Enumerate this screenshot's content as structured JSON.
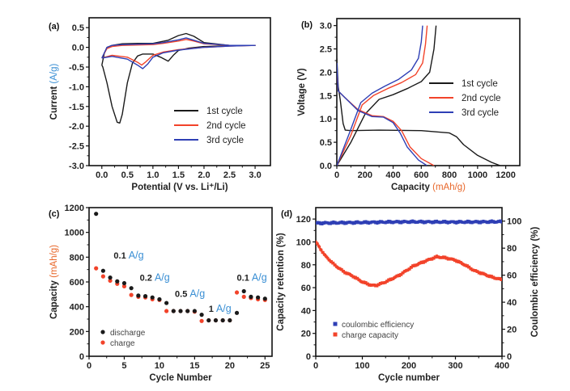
{
  "colors": {
    "black": "#1a1a1a",
    "red": "#f2432a",
    "blue": "#2e3fb5",
    "unit_blue": "#3a8fd4",
    "unit_orange": "#e8672a",
    "axis": "#111111"
  },
  "chart_data": [
    {
      "panel": "(a)",
      "type": "line",
      "title": "",
      "xlabel": "Potential (V vs. Li⁺/Li)",
      "ylabel_main": "Current ",
      "ylabel_unit": "(A/g)",
      "xlim": [
        -0.25,
        3.3
      ],
      "ylim": [
        -3.0,
        0.75
      ],
      "xticks": [
        0.0,
        0.5,
        1.0,
        1.5,
        2.0,
        2.5,
        3.0
      ],
      "xtick_labels": [
        "0.0",
        "0.5",
        "1.0",
        "1.5",
        "2.0",
        "2.5",
        "3.0"
      ],
      "yticks": [
        0.5,
        0.0,
        -0.5,
        -1.0,
        -1.5,
        -2.0,
        -2.5,
        -3.0
      ],
      "ytick_labels": [
        "0.5",
        "0.0",
        "-0.5",
        "-1.0",
        "-1.5",
        "-2.0",
        "-2.5",
        "-3.0"
      ],
      "legend": {
        "position": "lower-right",
        "entries": [
          "1st cycle",
          "2nd cycle",
          "3rd cycle"
        ]
      },
      "series": [
        {
          "name": "1st cycle",
          "color": "#1a1a1a",
          "x": [
            0.0,
            0.02,
            0.1,
            0.2,
            0.3,
            0.35,
            0.4,
            0.5,
            0.6,
            0.7,
            0.8,
            1.0,
            1.15,
            1.3,
            1.4,
            1.5,
            1.7,
            2.0,
            2.5,
            3.0,
            2.5,
            2.0,
            1.8,
            1.65,
            1.5,
            1.3,
            1.0,
            0.7,
            0.4,
            0.2,
            0.1,
            0.05,
            0.0
          ],
          "y": [
            -0.45,
            -0.5,
            -0.9,
            -1.5,
            -1.9,
            -1.92,
            -1.7,
            -0.9,
            -0.4,
            -0.22,
            -0.17,
            -0.17,
            -0.25,
            -0.35,
            -0.2,
            -0.08,
            -0.02,
            0.02,
            0.04,
            0.05,
            0.05,
            0.12,
            0.28,
            0.35,
            0.3,
            0.18,
            0.1,
            0.1,
            0.09,
            0.05,
            0.0,
            -0.15,
            -0.45
          ]
        },
        {
          "name": "2nd cycle",
          "color": "#f2432a",
          "x": [
            0.0,
            0.2,
            0.5,
            0.7,
            0.78,
            0.85,
            1.0,
            1.2,
            1.5,
            2.0,
            2.5,
            3.0,
            2.5,
            2.0,
            1.8,
            1.65,
            1.5,
            1.2,
            1.0,
            0.7,
            0.4,
            0.2,
            0.1,
            0.0
          ],
          "y": [
            -0.27,
            -0.2,
            -0.25,
            -0.38,
            -0.45,
            -0.38,
            -0.2,
            -0.12,
            -0.06,
            0.0,
            0.03,
            0.05,
            0.05,
            0.09,
            0.16,
            0.2,
            0.16,
            0.1,
            0.07,
            0.06,
            0.05,
            0.02,
            -0.03,
            -0.27
          ]
        },
        {
          "name": "3rd cycle",
          "color": "#2e3fb5",
          "x": [
            0.0,
            0.2,
            0.5,
            0.7,
            0.8,
            0.9,
            1.0,
            1.2,
            1.5,
            2.0,
            2.5,
            3.0,
            2.5,
            2.0,
            1.8,
            1.65,
            1.5,
            1.2,
            1.0,
            0.7,
            0.4,
            0.2,
            0.1,
            0.0
          ],
          "y": [
            -0.27,
            -0.23,
            -0.3,
            -0.45,
            -0.54,
            -0.42,
            -0.25,
            -0.14,
            -0.07,
            0.0,
            0.03,
            0.05,
            0.05,
            0.1,
            0.18,
            0.24,
            0.19,
            0.12,
            0.09,
            0.08,
            0.07,
            0.05,
            0.0,
            -0.27
          ]
        }
      ]
    },
    {
      "panel": "(b)",
      "type": "line",
      "title": "",
      "xlabel_main": "Capacity ",
      "xlabel_unit": "(mAh/g)",
      "ylabel": "Voltage (V)",
      "xlim": [
        0,
        1300
      ],
      "ylim": [
        0,
        3.15
      ],
      "xticks": [
        0,
        200,
        400,
        600,
        800,
        1000,
        1200
      ],
      "xtick_labels": [
        "0",
        "200",
        "400",
        "600",
        "800",
        "1000",
        "1200"
      ],
      "yticks": [
        0.0,
        0.5,
        1.0,
        1.5,
        2.0,
        2.5,
        3.0
      ],
      "ytick_labels": [
        "0.0",
        "0.5",
        "1.0",
        "1.5",
        "2.0",
        "2.5",
        "3.0"
      ],
      "legend": {
        "position": "right",
        "entries": [
          "1st cycle",
          "2nd cycle",
          "3rd cycle"
        ]
      },
      "series": [
        {
          "name": "1st cycle discharge",
          "legend": "1st cycle",
          "color": "#1a1a1a",
          "x": [
            0,
            10,
            25,
            45,
            60,
            100,
            300,
            600,
            800,
            850,
            900,
            1000,
            1100,
            1160
          ],
          "y": [
            2.3,
            1.7,
            1.4,
            0.9,
            0.76,
            0.75,
            0.76,
            0.75,
            0.7,
            0.62,
            0.45,
            0.22,
            0.07,
            0.0
          ]
        },
        {
          "name": "1st cycle charge",
          "legend": "1st cycle",
          "color": "#1a1a1a",
          "x": [
            0,
            100,
            200,
            300,
            400,
            500,
            600,
            660,
            690,
            705
          ],
          "y": [
            0.0,
            0.5,
            1.1,
            1.42,
            1.52,
            1.65,
            1.8,
            2.0,
            2.5,
            3.0
          ]
        },
        {
          "name": "2nd cycle discharge",
          "legend": "2nd cycle",
          "color": "#f2432a",
          "x": [
            0,
            10,
            60,
            150,
            250,
            330,
            400,
            460,
            520,
            600,
            690
          ],
          "y": [
            2.1,
            1.6,
            1.45,
            1.2,
            1.07,
            1.05,
            0.95,
            0.75,
            0.4,
            0.15,
            0.0
          ]
        },
        {
          "name": "2nd cycle charge",
          "legend": "2nd cycle",
          "color": "#f2432a",
          "x": [
            0,
            100,
            180,
            260,
            360,
            460,
            560,
            610,
            630,
            642
          ],
          "y": [
            0.0,
            0.65,
            1.3,
            1.5,
            1.65,
            1.78,
            1.95,
            2.2,
            2.6,
            3.0
          ]
        },
        {
          "name": "3rd cycle discharge",
          "legend": "3rd cycle",
          "color": "#2e3fb5",
          "x": [
            0,
            10,
            60,
            150,
            250,
            330,
            400,
            450,
            500,
            580,
            640
          ],
          "y": [
            2.2,
            1.6,
            1.45,
            1.18,
            1.05,
            1.04,
            0.92,
            0.7,
            0.4,
            0.12,
            0.0
          ]
        },
        {
          "name": "3rd cycle charge",
          "legend": "3rd cycle",
          "color": "#2e3fb5",
          "x": [
            0,
            90,
            170,
            250,
            340,
            440,
            530,
            580,
            600,
            610
          ],
          "y": [
            0.0,
            0.7,
            1.35,
            1.55,
            1.7,
            1.85,
            2.05,
            2.3,
            2.65,
            3.0
          ]
        }
      ]
    },
    {
      "panel": "(c)",
      "type": "scatter",
      "title": "",
      "xlabel": "Cycle Number",
      "ylabel_main": "Capacity ",
      "ylabel_unit": "(mAh/g)",
      "xlim": [
        0,
        26
      ],
      "ylim": [
        0,
        1200
      ],
      "xticks": [
        0,
        5,
        10,
        15,
        20,
        25
      ],
      "xtick_labels": [
        "0",
        "5",
        "10",
        "15",
        "20",
        "25"
      ],
      "yticks": [
        0,
        200,
        400,
        600,
        800,
        1000,
        1200
      ],
      "ytick_labels": [
        "0",
        "200",
        "400",
        "600",
        "800",
        "1000",
        "1200"
      ],
      "legend": {
        "position": "lower-left",
        "entries": [
          "discharge",
          "charge"
        ]
      },
      "x": [
        1,
        2,
        3,
        4,
        5,
        6,
        7,
        8,
        9,
        10,
        11,
        12,
        13,
        14,
        15,
        16,
        17,
        18,
        19,
        20,
        21,
        22,
        23,
        24,
        25
      ],
      "series": [
        {
          "name": "discharge",
          "color": "#1a1a1a",
          "values": [
            1150,
            690,
            635,
            605,
            590,
            550,
            490,
            485,
            475,
            460,
            430,
            365,
            365,
            365,
            365,
            335,
            290,
            290,
            290,
            290,
            350,
            525,
            480,
            475,
            465
          ]
        },
        {
          "name": "charge",
          "color": "#f2432a",
          "values": [
            710,
            645,
            610,
            585,
            565,
            495,
            480,
            475,
            460,
            455,
            365,
            365,
            365,
            365,
            360,
            285,
            290,
            290,
            290,
            290,
            515,
            480,
            470,
            460,
            455
          ]
        }
      ],
      "annotations": [
        {
          "num": "0.1 ",
          "unit": "A/g",
          "x": 3.5,
          "y": 790
        },
        {
          "num": "0.2 ",
          "unit": "A/g",
          "x": 7.2,
          "y": 610
        },
        {
          "num": "0.5 ",
          "unit": "A/g",
          "x": 12.2,
          "y": 480
        },
        {
          "num": "1 ",
          "unit": "A/g",
          "x": 17.0,
          "y": 360
        },
        {
          "num": "0.1 ",
          "unit": "A/g",
          "x": 21.0,
          "y": 610
        }
      ]
    },
    {
      "panel": "(d)",
      "type": "scatter",
      "title": "",
      "xlabel": "Cycle number",
      "ylabel": "Capacity retention (%)",
      "ylabel_right": "Coulombic efficiency (%)",
      "xlim": [
        0,
        400
      ],
      "ylim": [
        0,
        130
      ],
      "ylim_right": [
        0,
        110
      ],
      "xticks": [
        0,
        100,
        200,
        300,
        400
      ],
      "xtick_labels": [
        "0",
        "100",
        "200",
        "300",
        "400"
      ],
      "yticks": [
        0,
        20,
        40,
        60,
        80,
        100,
        120
      ],
      "ytick_labels": [
        "0",
        "20",
        "40",
        "60",
        "80",
        "100",
        "120"
      ],
      "yticks_right": [
        0,
        20,
        40,
        60,
        80,
        100
      ],
      "ytick_labels_right": [
        "0",
        "20",
        "40",
        "60",
        "80",
        "100"
      ],
      "legend": {
        "position": "lower-left",
        "entries": [
          "coulombic efficiency",
          "charge capacity"
        ]
      },
      "series": [
        {
          "name": "coulombic efficiency",
          "axis": "right",
          "color": "#2e3fb5",
          "x": [
            0,
            50,
            100,
            150,
            200,
            250,
            300,
            350,
            400
          ],
          "values": [
            98.5,
            98.8,
            99,
            99.3,
            99.5,
            99.4,
            99.3,
            99.4,
            99.6
          ]
        },
        {
          "name": "charge capacity",
          "axis": "left",
          "color": "#f2432a",
          "x": [
            0,
            20,
            40,
            60,
            80,
            100,
            120,
            130,
            150,
            180,
            210,
            240,
            260,
            280,
            300,
            320,
            340,
            360,
            380,
            400
          ],
          "values": [
            100,
            88,
            80,
            74,
            70,
            65,
            62,
            62,
            65,
            71,
            79,
            84,
            87,
            86,
            84,
            80,
            75,
            72,
            69,
            67
          ]
        }
      ]
    }
  ]
}
